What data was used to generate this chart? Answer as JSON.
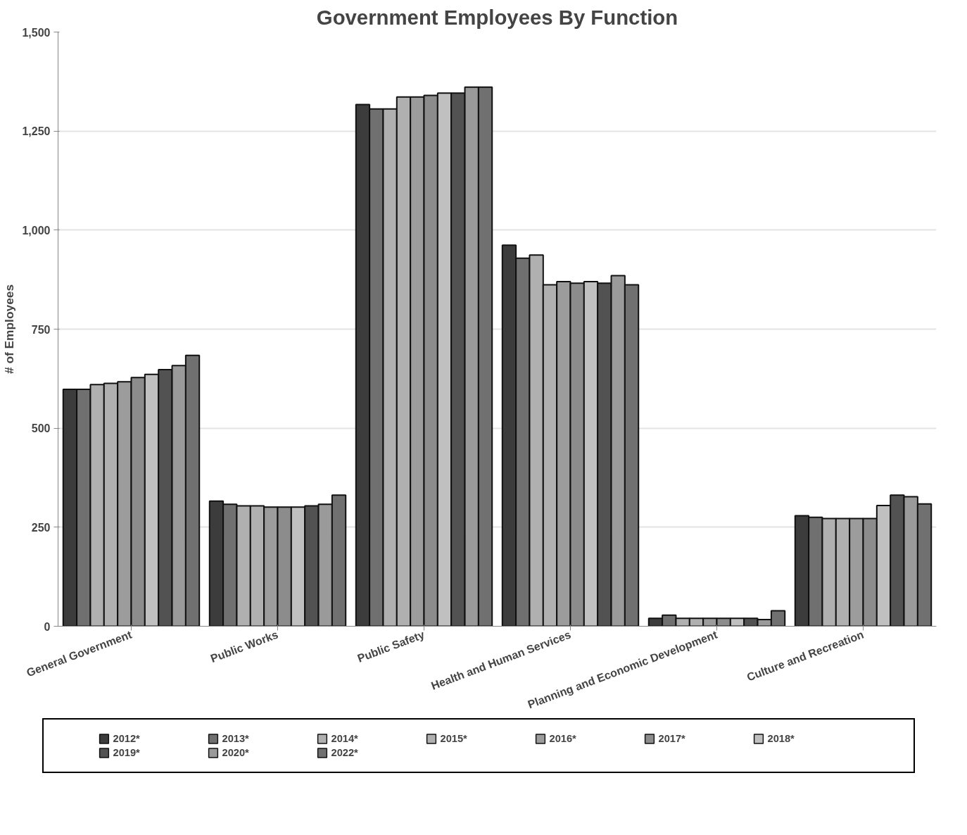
{
  "chart_data": {
    "type": "bar",
    "title": "Government Employees By Function",
    "ylabel": "# of Employees",
    "categories": [
      "General Government",
      "Public Works",
      "Public Safety",
      "Health and Human Services",
      "Planning and Economic Development",
      "Culture and Recreation"
    ],
    "series": [
      {
        "name": "2012*",
        "color": "#3c3c3c",
        "values": [
          598,
          316,
          1317,
          962,
          20,
          279
        ]
      },
      {
        "name": "2013*",
        "color": "#707070",
        "values": [
          598,
          308,
          1306,
          929,
          28,
          275
        ]
      },
      {
        "name": "2014*",
        "color": "#b0b0b0",
        "values": [
          610,
          304,
          1306,
          937,
          20,
          272
        ]
      },
      {
        "name": "2015*",
        "color": "#b0b0b0",
        "values": [
          613,
          304,
          1336,
          862,
          20,
          272
        ]
      },
      {
        "name": "2016*",
        "color": "#9c9c9c",
        "values": [
          617,
          301,
          1336,
          870,
          20,
          272
        ]
      },
      {
        "name": "2017*",
        "color": "#8c8c8c",
        "values": [
          628,
          301,
          1340,
          866,
          20,
          272
        ]
      },
      {
        "name": "2018*",
        "color": "#c0c0c0",
        "values": [
          636,
          301,
          1346,
          870,
          20,
          305
        ]
      },
      {
        "name": "2019*",
        "color": "#525252",
        "values": [
          648,
          304,
          1346,
          866,
          20,
          331
        ]
      },
      {
        "name": "2020*",
        "color": "#9a9a9a",
        "values": [
          658,
          308,
          1361,
          885,
          17,
          327
        ]
      },
      {
        "name": "2022*",
        "color": "#707070",
        "values": [
          684,
          331,
          1361,
          862,
          39,
          309
        ]
      }
    ],
    "ylim": [
      0,
      1500
    ],
    "yticks": [
      0,
      {
        "value": 250,
        "label": "250"
      },
      500,
      750,
      {
        "value": 1000,
        "label": "1,000"
      },
      {
        "value": 1250,
        "label": "1,250"
      },
      {
        "value": 1500,
        "label": "1,500"
      }
    ],
    "grid": "y",
    "legend": "bottom"
  }
}
